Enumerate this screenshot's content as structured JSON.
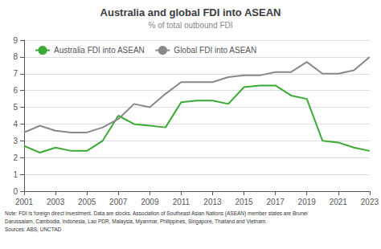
{
  "chart_data": {
    "type": "line",
    "title": "Australia and global FDI into ASEAN",
    "subtitle": "% of total outbound FDI",
    "annotations": [
      "Note: FDI is foreign direct investment. Data are stocks. Association of Southeast Asian Nations (ASEAN) member states are Brunei",
      "Darussalam, Cambodia, Indonesia, Lao PDR, Malaysia, Myanmar, Philippines, Singapore, Thailand and Vietnam.",
      "Sources: ABS, UNCTAD"
    ],
    "x": [
      2001,
      2002,
      2003,
      2004,
      2005,
      2006,
      2007,
      2008,
      2009,
      2010,
      2011,
      2012,
      2013,
      2014,
      2015,
      2016,
      2017,
      2018,
      2019,
      2020,
      2021,
      2022,
      2023
    ],
    "series": [
      {
        "name": "Australia FDI into ASEAN",
        "color": "#3aaa35",
        "values": [
          2.7,
          2.3,
          2.6,
          2.4,
          2.4,
          3.0,
          4.5,
          4.0,
          3.9,
          3.8,
          5.3,
          5.4,
          5.4,
          5.2,
          6.2,
          6.3,
          6.3,
          5.7,
          5.5,
          3.0,
          2.9,
          2.6,
          2.4
        ]
      },
      {
        "name": "Global FDI into ASEAN",
        "color": "#888888",
        "values": [
          3.5,
          3.9,
          3.6,
          3.5,
          3.5,
          3.8,
          4.3,
          5.2,
          5.0,
          5.8,
          6.5,
          6.5,
          6.5,
          6.8,
          6.9,
          6.9,
          7.1,
          7.1,
          7.7,
          7.0,
          7.0,
          7.2,
          8.0
        ]
      }
    ],
    "xlim": [
      2001,
      2023
    ],
    "xticks": [
      2001,
      2003,
      2005,
      2007,
      2009,
      2011,
      2013,
      2015,
      2017,
      2019,
      2021,
      2023
    ],
    "ylim": [
      0,
      9
    ],
    "yticks": [
      0,
      1,
      2,
      3,
      4,
      5,
      6,
      7,
      8,
      9
    ],
    "grid": true,
    "legend": "upper left"
  }
}
